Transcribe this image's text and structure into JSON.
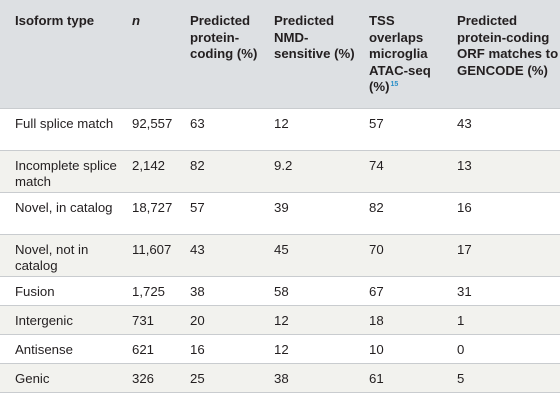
{
  "table": {
    "headers": [
      "Isoform type",
      "n",
      "Predicted protein-coding (%)",
      "Predicted NMD-sensitive (%)",
      "TSS overlaps microglia ATAC-seq (%)",
      "Predicted protein-coding ORF matches to GENCODE (%)"
    ],
    "header_ref": "15",
    "rows": [
      [
        "Full splice match",
        "92,557",
        "63",
        "12",
        "57",
        "43"
      ],
      [
        "Incomplete splice match",
        "2,142",
        "82",
        "9.2",
        "74",
        "13"
      ],
      [
        "Novel, in catalog",
        "18,727",
        "57",
        "39",
        "82",
        "16"
      ],
      [
        "Novel, not in catalog",
        "11,607",
        "43",
        "45",
        "70",
        "17"
      ],
      [
        "Fusion",
        "1,725",
        "38",
        "58",
        "67",
        "31"
      ],
      [
        "Intergenic",
        "731",
        "20",
        "12",
        "18",
        "1"
      ],
      [
        "Antisense",
        "621",
        "16",
        "12",
        "10",
        "0"
      ],
      [
        "Genic",
        "326",
        "25",
        "38",
        "61",
        "5"
      ]
    ]
  }
}
